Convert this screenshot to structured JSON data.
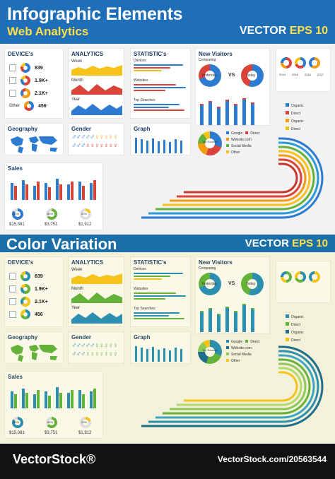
{
  "header": {
    "title": "Infographic Elements",
    "subtitle": "Web Analytics",
    "badge_vector": "VECTOR",
    "badge_eps": "EPS 10"
  },
  "section1": {
    "devices": {
      "title": "DEVICE's",
      "values": [
        "839",
        "1.9K+",
        "2.1K+",
        "456"
      ],
      "other_label": "Other"
    },
    "analytics": {
      "title": "ANALYTICS",
      "sub": [
        "Week",
        "Month",
        "Year"
      ]
    },
    "statistics": {
      "title": "STATISTIC's",
      "sub": [
        "Devices",
        "Websites",
        "Top Searches"
      ]
    },
    "visitors": {
      "title": "New Visitors",
      "sub": "Comparing",
      "yesterday": "Yesterday",
      "vs": "VS",
      "today": "Today"
    },
    "geography": {
      "title": "Geography"
    },
    "gender": {
      "title": "Gender"
    },
    "graph": {
      "title": "Graph"
    },
    "top_sources": {
      "center": "Top Sources",
      "items": [
        "Google",
        "Direct",
        "Website.com",
        "Social Media",
        "Other"
      ]
    },
    "legend_right": [
      "Organic",
      "Direct",
      "Organic",
      "Direct",
      "Organic"
    ],
    "years": [
      "2014",
      "2015",
      "2016",
      "2017"
    ],
    "sales": {
      "title": "Sales",
      "percents": [
        "85%",
        "65%",
        "20%"
      ],
      "amounts": [
        "$15,081",
        "$3,751",
        "$1,912"
      ]
    }
  },
  "section2": {
    "title": "Color Variation",
    "badge_vector": "VECTOR",
    "badge_eps": "EPS 10",
    "devices": {
      "title": "DEVICE's",
      "values": [
        "839",
        "1.9K+",
        "2.1K+",
        "456"
      ]
    },
    "analytics": {
      "title": "ANALYTICS",
      "sub": [
        "Week",
        "Month",
        "Year"
      ]
    },
    "statistics": {
      "title": "STATISTIC's",
      "sub": [
        "Devices",
        "Websites",
        "Top Searches"
      ]
    },
    "visitors": {
      "title": "New Visitors",
      "sub": "Comparing",
      "yesterday": "Yesterday",
      "vs": "VS",
      "today": "Today"
    },
    "geography": {
      "title": "Geography"
    },
    "gender": {
      "title": "Gender"
    },
    "graph": {
      "title": "Graph"
    },
    "top_sources": {
      "center": "Top Sources",
      "items": [
        "Google",
        "Direct",
        "Website.com",
        "Social Media",
        "Other"
      ]
    },
    "legend_right": [
      "Organic",
      "Direct",
      "Organic",
      "Direct",
      "Organic"
    ],
    "sales": {
      "title": "Sales",
      "percents": [
        "85%",
        "65%",
        "20%"
      ],
      "amounts": [
        "$15,081",
        "$3,751",
        "$1,912"
      ]
    }
  },
  "footer": {
    "brand": "VectorStock®",
    "id": "VectorStock.com/20563544"
  },
  "colors": {
    "blue": "#2c7bd1",
    "red": "#d9433a",
    "orange": "#f39c12",
    "yellow": "#f5c31a",
    "green": "#65b23a",
    "teal": "#2d8fb0"
  }
}
